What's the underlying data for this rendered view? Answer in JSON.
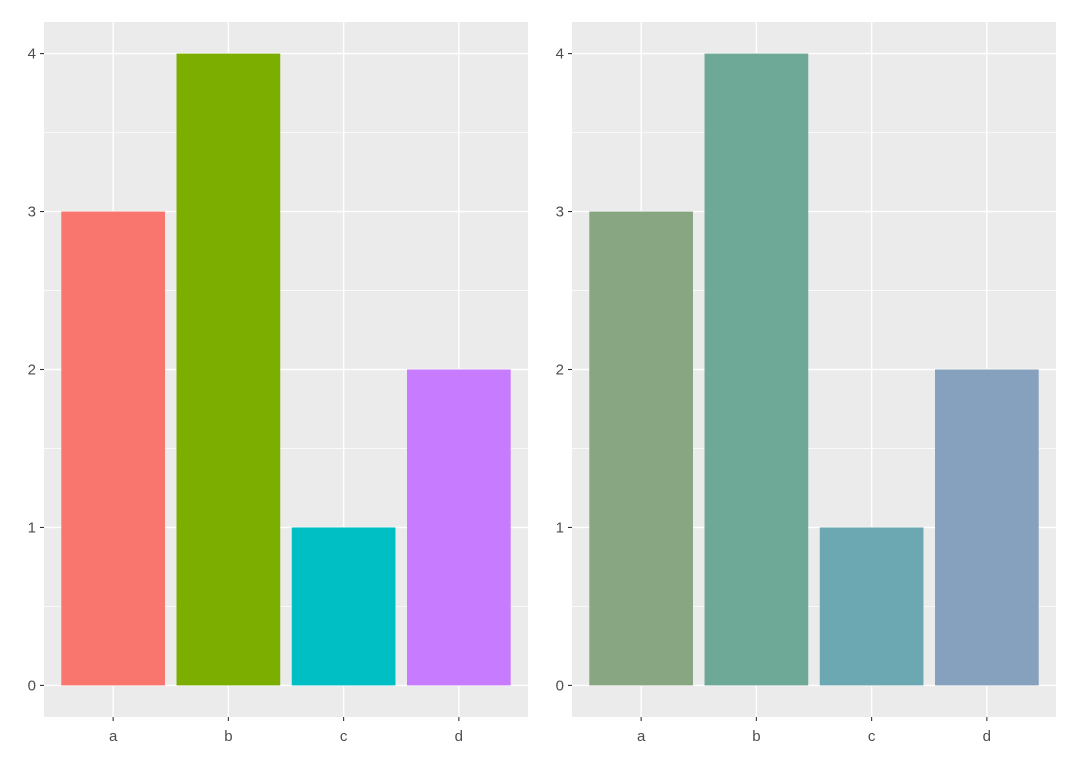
{
  "chart_data": [
    {
      "type": "bar",
      "categories": [
        "a",
        "b",
        "c",
        "d"
      ],
      "values": [
        3,
        4,
        1,
        2
      ],
      "colors": [
        "#F8766D",
        "#7CAE00",
        "#00BFC4",
        "#C77CFF"
      ],
      "ylim": [
        -0.2,
        4.2
      ],
      "yticks": [
        0,
        1,
        2,
        3,
        4
      ],
      "ytick_labels": [
        "0",
        "1",
        "2",
        "3",
        "4"
      ],
      "grid": true,
      "legend": "none",
      "panel_background": "#EBEBEB",
      "grid_color": "#FFFFFF"
    },
    {
      "type": "bar",
      "categories": [
        "a",
        "b",
        "c",
        "d"
      ],
      "values": [
        3,
        4,
        1,
        2
      ],
      "colors": [
        "#89A682",
        "#6EA896",
        "#6CA8B1",
        "#86A1BE"
      ],
      "ylim": [
        -0.2,
        4.2
      ],
      "yticks": [
        0,
        1,
        2,
        3,
        4
      ],
      "ytick_labels": [
        "0",
        "1",
        "2",
        "3",
        "4"
      ],
      "grid": true,
      "legend": "none",
      "panel_background": "#EBEBEB",
      "grid_color": "#FFFFFF"
    }
  ]
}
